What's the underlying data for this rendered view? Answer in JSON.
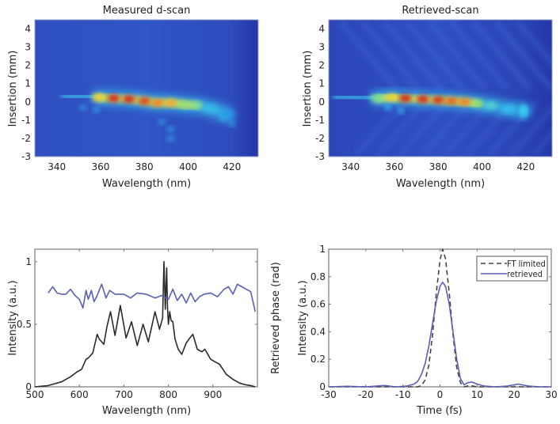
{
  "chart_data": [
    {
      "type": "heatmap",
      "id": "measured",
      "title": "Measured d-scan",
      "xlabel": "Wavelength (nm)",
      "ylabel": "Insertion (mm)",
      "xlim": [
        330,
        432
      ],
      "ylim": [
        -3,
        4.5
      ],
      "xticks": [
        340,
        360,
        380,
        400,
        420
      ],
      "yticks": [
        -3,
        -2,
        -1,
        0,
        1,
        2,
        3,
        4
      ],
      "colormap": "jet",
      "trace": {
        "description": "bright tilted streak from ~345 nm to ~420 nm centered near 0.3 mm at short wavelengths sloping to ~-0.4 mm at long wavelengths",
        "hotspots": [
          {
            "x": 359,
            "y": 0.25,
            "v": 0.75
          },
          {
            "x": 366,
            "y": 0.2,
            "v": 1.0
          },
          {
            "x": 373,
            "y": 0.15,
            "v": 1.0
          },
          {
            "x": 380,
            "y": 0.05,
            "v": 0.95
          },
          {
            "x": 386,
            "y": -0.05,
            "v": 0.85
          },
          {
            "x": 392,
            "y": -0.05,
            "v": 0.8
          },
          {
            "x": 398,
            "y": -0.15,
            "v": 0.6
          },
          {
            "x": 404,
            "y": -0.2,
            "v": 0.55
          },
          {
            "x": 410,
            "y": -0.35,
            "v": 0.4
          },
          {
            "x": 418,
            "y": -0.7,
            "v": 0.3
          }
        ]
      }
    },
    {
      "type": "heatmap",
      "id": "retrieved",
      "title": "Retrieved-scan",
      "xlabel": "Wavelength (nm)",
      "ylabel": "Insertion (mm)",
      "xlim": [
        330,
        432
      ],
      "ylim": [
        -3,
        4.5
      ],
      "xticks": [
        340,
        360,
        380,
        400,
        420
      ],
      "yticks": [
        -3,
        -2,
        -1,
        0,
        1,
        2,
        3,
        4
      ],
      "colormap": "jet",
      "trace": {
        "description": "bright streak from ~335 nm to ~413 nm near 0.2 mm, with isolated spot at ~419 nm, -0.5 mm; background shows diagonal fringe texture",
        "hotspots": [
          {
            "x": 352,
            "y": 0.2,
            "v": 0.55
          },
          {
            "x": 359,
            "y": 0.25,
            "v": 0.75
          },
          {
            "x": 365,
            "y": 0.2,
            "v": 1.0
          },
          {
            "x": 373,
            "y": 0.15,
            "v": 1.0
          },
          {
            "x": 380,
            "y": 0.1,
            "v": 0.98
          },
          {
            "x": 386,
            "y": 0.05,
            "v": 0.9
          },
          {
            "x": 392,
            "y": 0.0,
            "v": 0.85
          },
          {
            "x": 398,
            "y": -0.1,
            "v": 0.6
          },
          {
            "x": 404,
            "y": -0.2,
            "v": 0.5
          },
          {
            "x": 412,
            "y": -0.4,
            "v": 0.4
          },
          {
            "x": 419,
            "y": -0.5,
            "v": 0.35
          }
        ]
      }
    },
    {
      "type": "line",
      "id": "spectrum",
      "xlabel": "Wavelength (nm)",
      "ylabel": "Intensity (a.u.)",
      "ylabel_right": "Retrieved phase (rad)",
      "xlim": [
        500,
        1000
      ],
      "ylim": [
        0,
        1.1
      ],
      "xticks": [
        500,
        600,
        700,
        800,
        900
      ],
      "yticks": [
        0,
        0.5,
        1
      ],
      "series": [
        {
          "name": "spectrum",
          "color": "#2b2b2b",
          "x": [
            500,
            530,
            560,
            580,
            595,
            605,
            615,
            620,
            630,
            640,
            645,
            655,
            662,
            670,
            680,
            692,
            705,
            717,
            730,
            743,
            755,
            770,
            780,
            787,
            790,
            793,
            796,
            798,
            800,
            803,
            806,
            810,
            815,
            822,
            830,
            840,
            848,
            855,
            865,
            875,
            882,
            895,
            905,
            915,
            930,
            945,
            960,
            975,
            985,
            995
          ],
          "y": [
            0.0,
            0.01,
            0.04,
            0.08,
            0.12,
            0.14,
            0.22,
            0.23,
            0.27,
            0.42,
            0.38,
            0.34,
            0.48,
            0.6,
            0.41,
            0.65,
            0.39,
            0.52,
            0.33,
            0.5,
            0.36,
            0.6,
            0.46,
            0.55,
            1.0,
            0.62,
            0.95,
            0.63,
            0.5,
            0.6,
            0.53,
            0.52,
            0.38,
            0.3,
            0.26,
            0.35,
            0.39,
            0.42,
            0.3,
            0.28,
            0.3,
            0.22,
            0.2,
            0.18,
            0.1,
            0.06,
            0.03,
            0.015,
            0.01,
            0.0
          ]
        },
        {
          "name": "retrieved phase",
          "color": "#5b5fb5",
          "axis": "right",
          "x": [
            530,
            540,
            550,
            560,
            570,
            580,
            590,
            600,
            608,
            615,
            620,
            627,
            633,
            640,
            650,
            660,
            668,
            680,
            700,
            715,
            730,
            750,
            770,
            785,
            800,
            810,
            820,
            830,
            840,
            850,
            860,
            870,
            880,
            895,
            910,
            925,
            935,
            945,
            955,
            965,
            975,
            985,
            995
          ],
          "y": [
            0.75,
            0.8,
            0.75,
            0.74,
            0.74,
            0.78,
            0.73,
            0.7,
            0.63,
            0.77,
            0.7,
            0.77,
            0.68,
            0.73,
            0.82,
            0.71,
            0.77,
            0.74,
            0.74,
            0.71,
            0.75,
            0.74,
            0.71,
            0.73,
            0.7,
            0.78,
            0.69,
            0.74,
            0.67,
            0.75,
            0.68,
            0.72,
            0.74,
            0.75,
            0.72,
            0.78,
            0.8,
            0.74,
            0.82,
            0.8,
            0.78,
            0.76,
            0.6
          ]
        }
      ]
    },
    {
      "type": "line",
      "id": "temporal",
      "xlabel": "Time (fs)",
      "ylabel": "Intensity (a.u.)",
      "xlim": [
        -30,
        30
      ],
      "ylim": [
        0,
        1
      ],
      "xticks": [
        -30,
        -20,
        -10,
        0,
        10,
        20,
        30
      ],
      "yticks": [
        0,
        0.2,
        0.4,
        0.6,
        0.8,
        1
      ],
      "legend": {
        "position": "top-right",
        "entries": [
          "FT limited",
          "retrieved"
        ]
      },
      "series": [
        {
          "name": "FT limited",
          "style": "dashed",
          "color": "#444444",
          "x": [
            -30,
            -10,
            -6,
            -5,
            -4,
            -3,
            -2,
            -1,
            0,
            0.7,
            1.5,
            2.5,
            3.5,
            4.5,
            5.5,
            6.5,
            8,
            10,
            30
          ],
          "y": [
            0,
            0,
            0.0,
            0.01,
            0.05,
            0.16,
            0.38,
            0.68,
            0.92,
            1.0,
            0.93,
            0.68,
            0.38,
            0.14,
            0.03,
            0.0,
            0.01,
            0.0,
            0
          ]
        },
        {
          "name": "retrieved",
          "style": "solid",
          "color": "#5b5fb5",
          "x": [
            -30,
            -25,
            -20,
            -15,
            -12,
            -9,
            -7,
            -6,
            -5,
            -4,
            -3,
            -2,
            -1,
            0,
            0.7,
            1.5,
            2.5,
            3.5,
            4.5,
            5.5,
            6.5,
            7.5,
            8.5,
            10,
            12,
            15,
            18,
            21,
            24,
            27,
            30
          ],
          "y": [
            0,
            0.004,
            0.0,
            0.01,
            0.0,
            0.005,
            0.02,
            0.04,
            0.09,
            0.17,
            0.3,
            0.46,
            0.62,
            0.73,
            0.76,
            0.73,
            0.6,
            0.4,
            0.2,
            0.06,
            0.015,
            0.03,
            0.035,
            0.02,
            0.005,
            0.0,
            0.005,
            0.02,
            0.005,
            0.0,
            0
          ]
        }
      ]
    }
  ]
}
